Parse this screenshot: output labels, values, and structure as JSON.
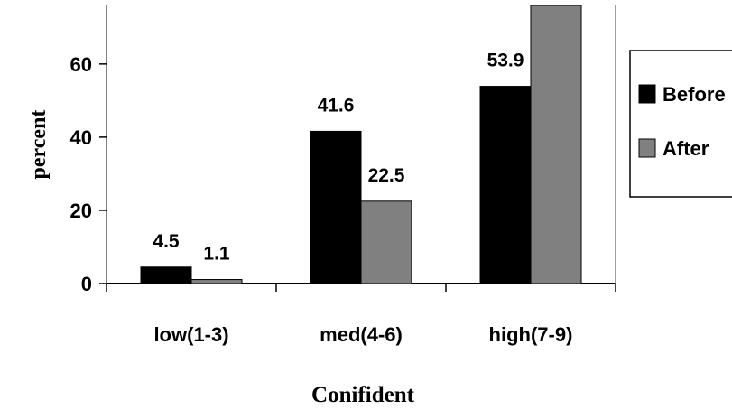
{
  "chart_data": {
    "type": "bar",
    "title": "",
    "xlabel": "Conifident",
    "ylabel": "percent",
    "categories": [
      "low(1-3)",
      "med(4-6)",
      "high(7-9)"
    ],
    "series": [
      {
        "name": "Before",
        "values": [
          4.5,
          41.6,
          53.9
        ],
        "labels": [
          "4.5",
          "41.6",
          "53.9"
        ],
        "color": "#000000"
      },
      {
        "name": "After",
        "values": [
          1.1,
          22.5,
          76
        ],
        "labels": [
          "1.1",
          "22.5",
          ""
        ],
        "color": "#808080"
      }
    ],
    "yticks": [
      "0",
      "20",
      "40",
      "60"
    ],
    "ylim": [
      0,
      76
    ],
    "grid": false,
    "legend": "right"
  }
}
